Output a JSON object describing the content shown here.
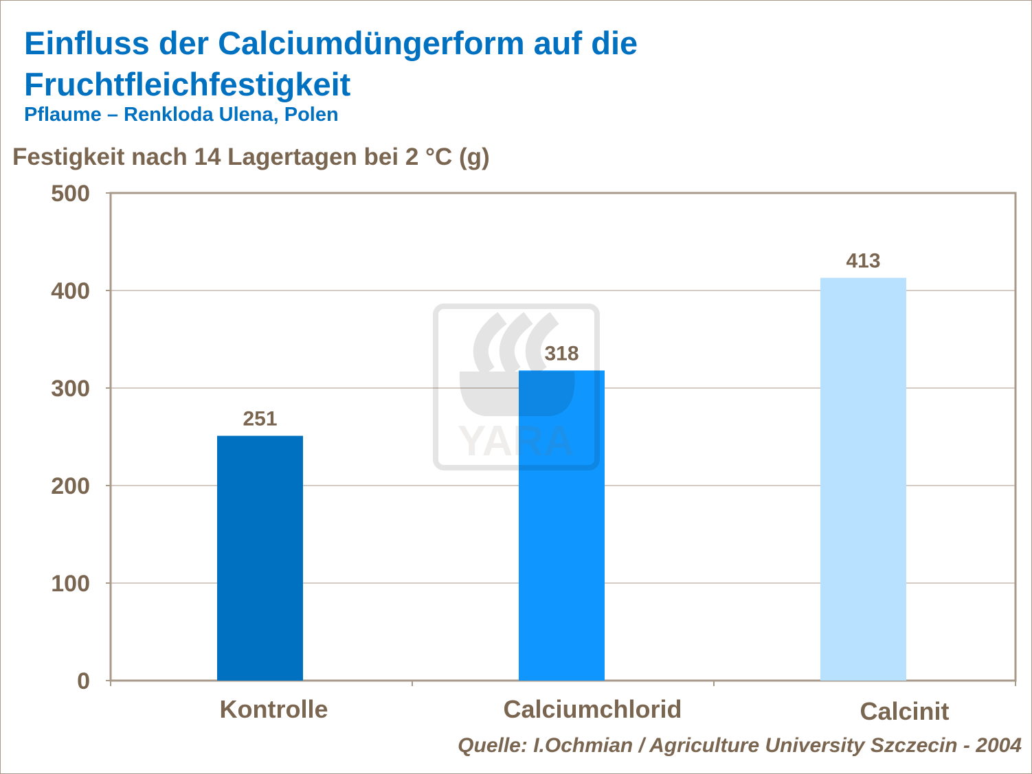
{
  "chart_data": {
    "type": "bar",
    "title": "Einfluss der Calciumdüngerform auf die Fruchtfleichfestigkeit",
    "title_lines": [
      "Einfluss der Calciumdüngerform auf die",
      "Fruchtfleichfestigkeit"
    ],
    "subtitle": "Pflaume – Renkloda Ulena, Polen",
    "ylabel": "Festigkeit nach 14 Lagertagen bei 2 °C (g)",
    "xlabel": "",
    "categories": [
      "Kontrolle",
      "Calciumchlorid",
      "Calcinit"
    ],
    "values": [
      251,
      318,
      413
    ],
    "data_labels": [
      "251",
      "318",
      "413"
    ],
    "colors": [
      "#0070c0",
      "#1097ff",
      "#b8e0ff"
    ],
    "ylim": [
      0,
      500
    ],
    "yticks": [
      0,
      100,
      200,
      300,
      400,
      500
    ],
    "grid": true,
    "legend": "none",
    "source": "Quelle: I.Ochmian / Agriculture University Szczecin - 2004",
    "watermark": "YARA"
  }
}
